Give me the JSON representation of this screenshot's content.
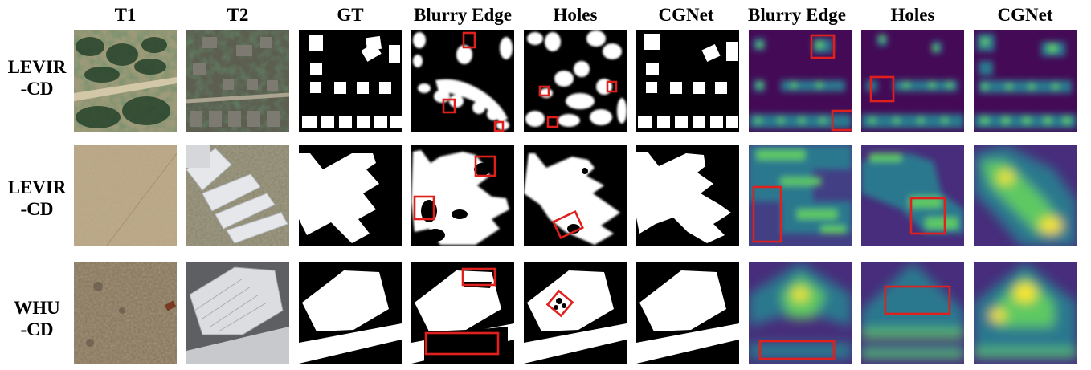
{
  "column_headers": [
    "T1",
    "T2",
    "GT",
    "Blurry Edge",
    "Holes",
    "CGNet",
    "Blurry Edge",
    "Holes",
    "CGNet"
  ],
  "rows": [
    {
      "label_line1": "LEVIR",
      "label_line2": "-CD"
    },
    {
      "label_line1": "LEVIR",
      "label_line2": "-CD"
    },
    {
      "label_line1": "WHU",
      "label_line2": "-CD"
    }
  ],
  "colors": {
    "mask_white": "#ffffff",
    "mask_black": "#000000",
    "highlight_box": "#e0201d",
    "heatmap_low": "#440a56",
    "heatmap_mid": "#21918c",
    "heatmap_high": "#fde725"
  }
}
